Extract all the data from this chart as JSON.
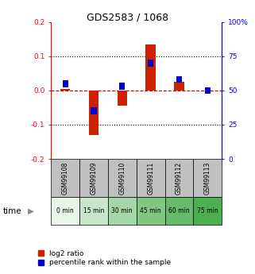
{
  "title": "GDS2583 / 1068",
  "samples": [
    "GSM99108",
    "GSM99109",
    "GSM99110",
    "GSM99111",
    "GSM99112",
    "GSM99113"
  ],
  "time_labels": [
    "0 min",
    "15 min",
    "30 min",
    "45 min",
    "60 min",
    "75 min"
  ],
  "time_colors": [
    "#e8f5e9",
    "#c8e6c9",
    "#a5d6a7",
    "#81c784",
    "#66bb6a",
    "#4caf50"
  ],
  "log2_ratio": [
    0.005,
    -0.13,
    -0.045,
    0.135,
    0.025,
    0.0
  ],
  "percentile_rank": [
    55.0,
    35.0,
    53.0,
    70.0,
    58.0,
    50.0
  ],
  "ylim_left": [
    -0.2,
    0.2
  ],
  "ylim_right": [
    0,
    100
  ],
  "yticks_left": [
    -0.2,
    -0.1,
    0.0,
    0.1,
    0.2
  ],
  "yticks_right": [
    0,
    25,
    50,
    75,
    100
  ],
  "bar_color_red": "#cc2200",
  "bar_color_blue": "#0000cc",
  "hline_color": "#cc0000",
  "bar_width": 0.35,
  "blue_bar_width": 0.2,
  "blue_bar_height": 5,
  "sample_box_color": "#c0c0c0",
  "legend_red_label": "log2 ratio",
  "legend_blue_label": "percentile rank within the sample"
}
